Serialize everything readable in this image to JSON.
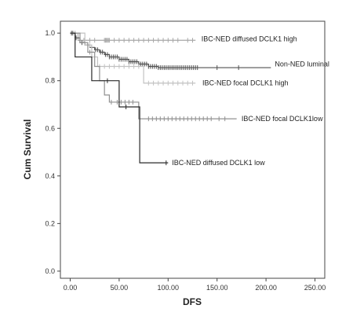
{
  "chart_data": {
    "type": "line",
    "subtype": "kaplan-meier-step",
    "title": "",
    "xlabel": "DFS",
    "ylabel": "Cum Survival",
    "xlim": [
      -10,
      260
    ],
    "ylim": [
      -0.03,
      1.05
    ],
    "xticks": [
      0,
      50,
      100,
      150,
      200,
      250
    ],
    "xtick_labels": [
      "0.00",
      "50.00",
      "100.00",
      "150.00",
      "200.00",
      "250.00"
    ],
    "yticks": [
      0,
      0.2,
      0.4,
      0.6,
      0.8,
      1.0
    ],
    "ytick_labels": [
      "0.0",
      "0.2",
      "0.4",
      "0.6",
      "0.8",
      "1.0"
    ],
    "grid": false,
    "legend": "none (inline labels)",
    "series": [
      {
        "name": "IBC-NED diffused DCLK1 high",
        "color": "#a8a8a8",
        "steps": [
          [
            0,
            1.0
          ],
          [
            8,
            0.97
          ],
          [
            128,
            0.97
          ]
        ],
        "censored": [
          1,
          3,
          5,
          10,
          14,
          20,
          25,
          35,
          36,
          37,
          38,
          39,
          40,
          45,
          50,
          55,
          60,
          65,
          70,
          75,
          80,
          85,
          90,
          95,
          100,
          105,
          110,
          120,
          125
        ]
      },
      {
        "name": "Non-NED luminal",
        "color": "#505050",
        "steps": [
          [
            0,
            1.0
          ],
          [
            5,
            0.98
          ],
          [
            10,
            0.96
          ],
          [
            15,
            0.95
          ],
          [
            20,
            0.94
          ],
          [
            25,
            0.93
          ],
          [
            30,
            0.92
          ],
          [
            35,
            0.91
          ],
          [
            40,
            0.9
          ],
          [
            50,
            0.89
          ],
          [
            60,
            0.88
          ],
          [
            70,
            0.87
          ],
          [
            80,
            0.86
          ],
          [
            90,
            0.855
          ],
          [
            205,
            0.855
          ]
        ],
        "censored": [
          2,
          6,
          12,
          18,
          22,
          26,
          28,
          31,
          33,
          36,
          38,
          40,
          42,
          44,
          46,
          48,
          50,
          52,
          54,
          56,
          58,
          60,
          62,
          64,
          66,
          68,
          70,
          72,
          74,
          76,
          78,
          80,
          82,
          84,
          86,
          88,
          90,
          92,
          94,
          96,
          98,
          100,
          102,
          104,
          106,
          108,
          110,
          112,
          114,
          116,
          118,
          120,
          122,
          124,
          126,
          128,
          130,
          150,
          172
        ]
      },
      {
        "name": "IBC-NED focal DCLK1 high",
        "color": "#c2c2c2",
        "steps": [
          [
            0,
            1.0
          ],
          [
            15,
            0.95
          ],
          [
            22,
            0.9
          ],
          [
            28,
            0.86
          ],
          [
            75,
            0.86
          ],
          [
            75,
            0.79
          ],
          [
            128,
            0.79
          ]
        ],
        "censored": [
          20,
          30,
          35,
          40,
          45,
          50,
          55,
          60,
          65,
          70,
          80,
          85,
          90,
          95,
          100,
          105,
          110,
          115,
          120,
          125
        ]
      },
      {
        "name": "IBC-NED focal DCLK1low",
        "color": "#909090",
        "steps": [
          [
            0,
            1.0
          ],
          [
            10,
            0.96
          ],
          [
            18,
            0.92
          ],
          [
            25,
            0.86
          ],
          [
            30,
            0.8
          ],
          [
            35,
            0.74
          ],
          [
            40,
            0.71
          ],
          [
            70,
            0.71
          ],
          [
            70,
            0.64
          ],
          [
            170,
            0.64
          ]
        ],
        "censored": [
          20,
          42,
          48,
          52,
          56,
          60,
          64,
          80,
          84,
          88,
          92,
          96,
          100,
          104,
          108,
          112,
          116,
          120,
          124,
          128,
          132,
          136,
          140,
          144,
          152,
          158
        ]
      },
      {
        "name": "IBC-NED diffused DCLK1 low",
        "color": "#2a2a2a",
        "steps": [
          [
            0,
            1.0
          ],
          [
            5,
            0.9
          ],
          [
            22,
            0.9
          ],
          [
            22,
            0.8
          ],
          [
            50,
            0.8
          ],
          [
            50,
            0.69
          ],
          [
            71,
            0.69
          ],
          [
            71,
            0.455
          ],
          [
            100,
            0.455
          ]
        ],
        "censored": [
          38,
          57,
          98
        ]
      }
    ],
    "annotations": [
      {
        "text": "IBC-NED diffused DCLK1 high",
        "x": 134,
        "y": 0.975
      },
      {
        "text": "Non-NED luminal",
        "x": 209,
        "y": 0.87
      },
      {
        "text": "IBC-NED focal DCLK1 high",
        "x": 135,
        "y": 0.79
      },
      {
        "text": "IBC-NED focal DCLK1low",
        "x": 175,
        "y": 0.64
      },
      {
        "text": "IBC-NED diffused DCLK1 low",
        "x": 104,
        "y": 0.455
      }
    ]
  }
}
